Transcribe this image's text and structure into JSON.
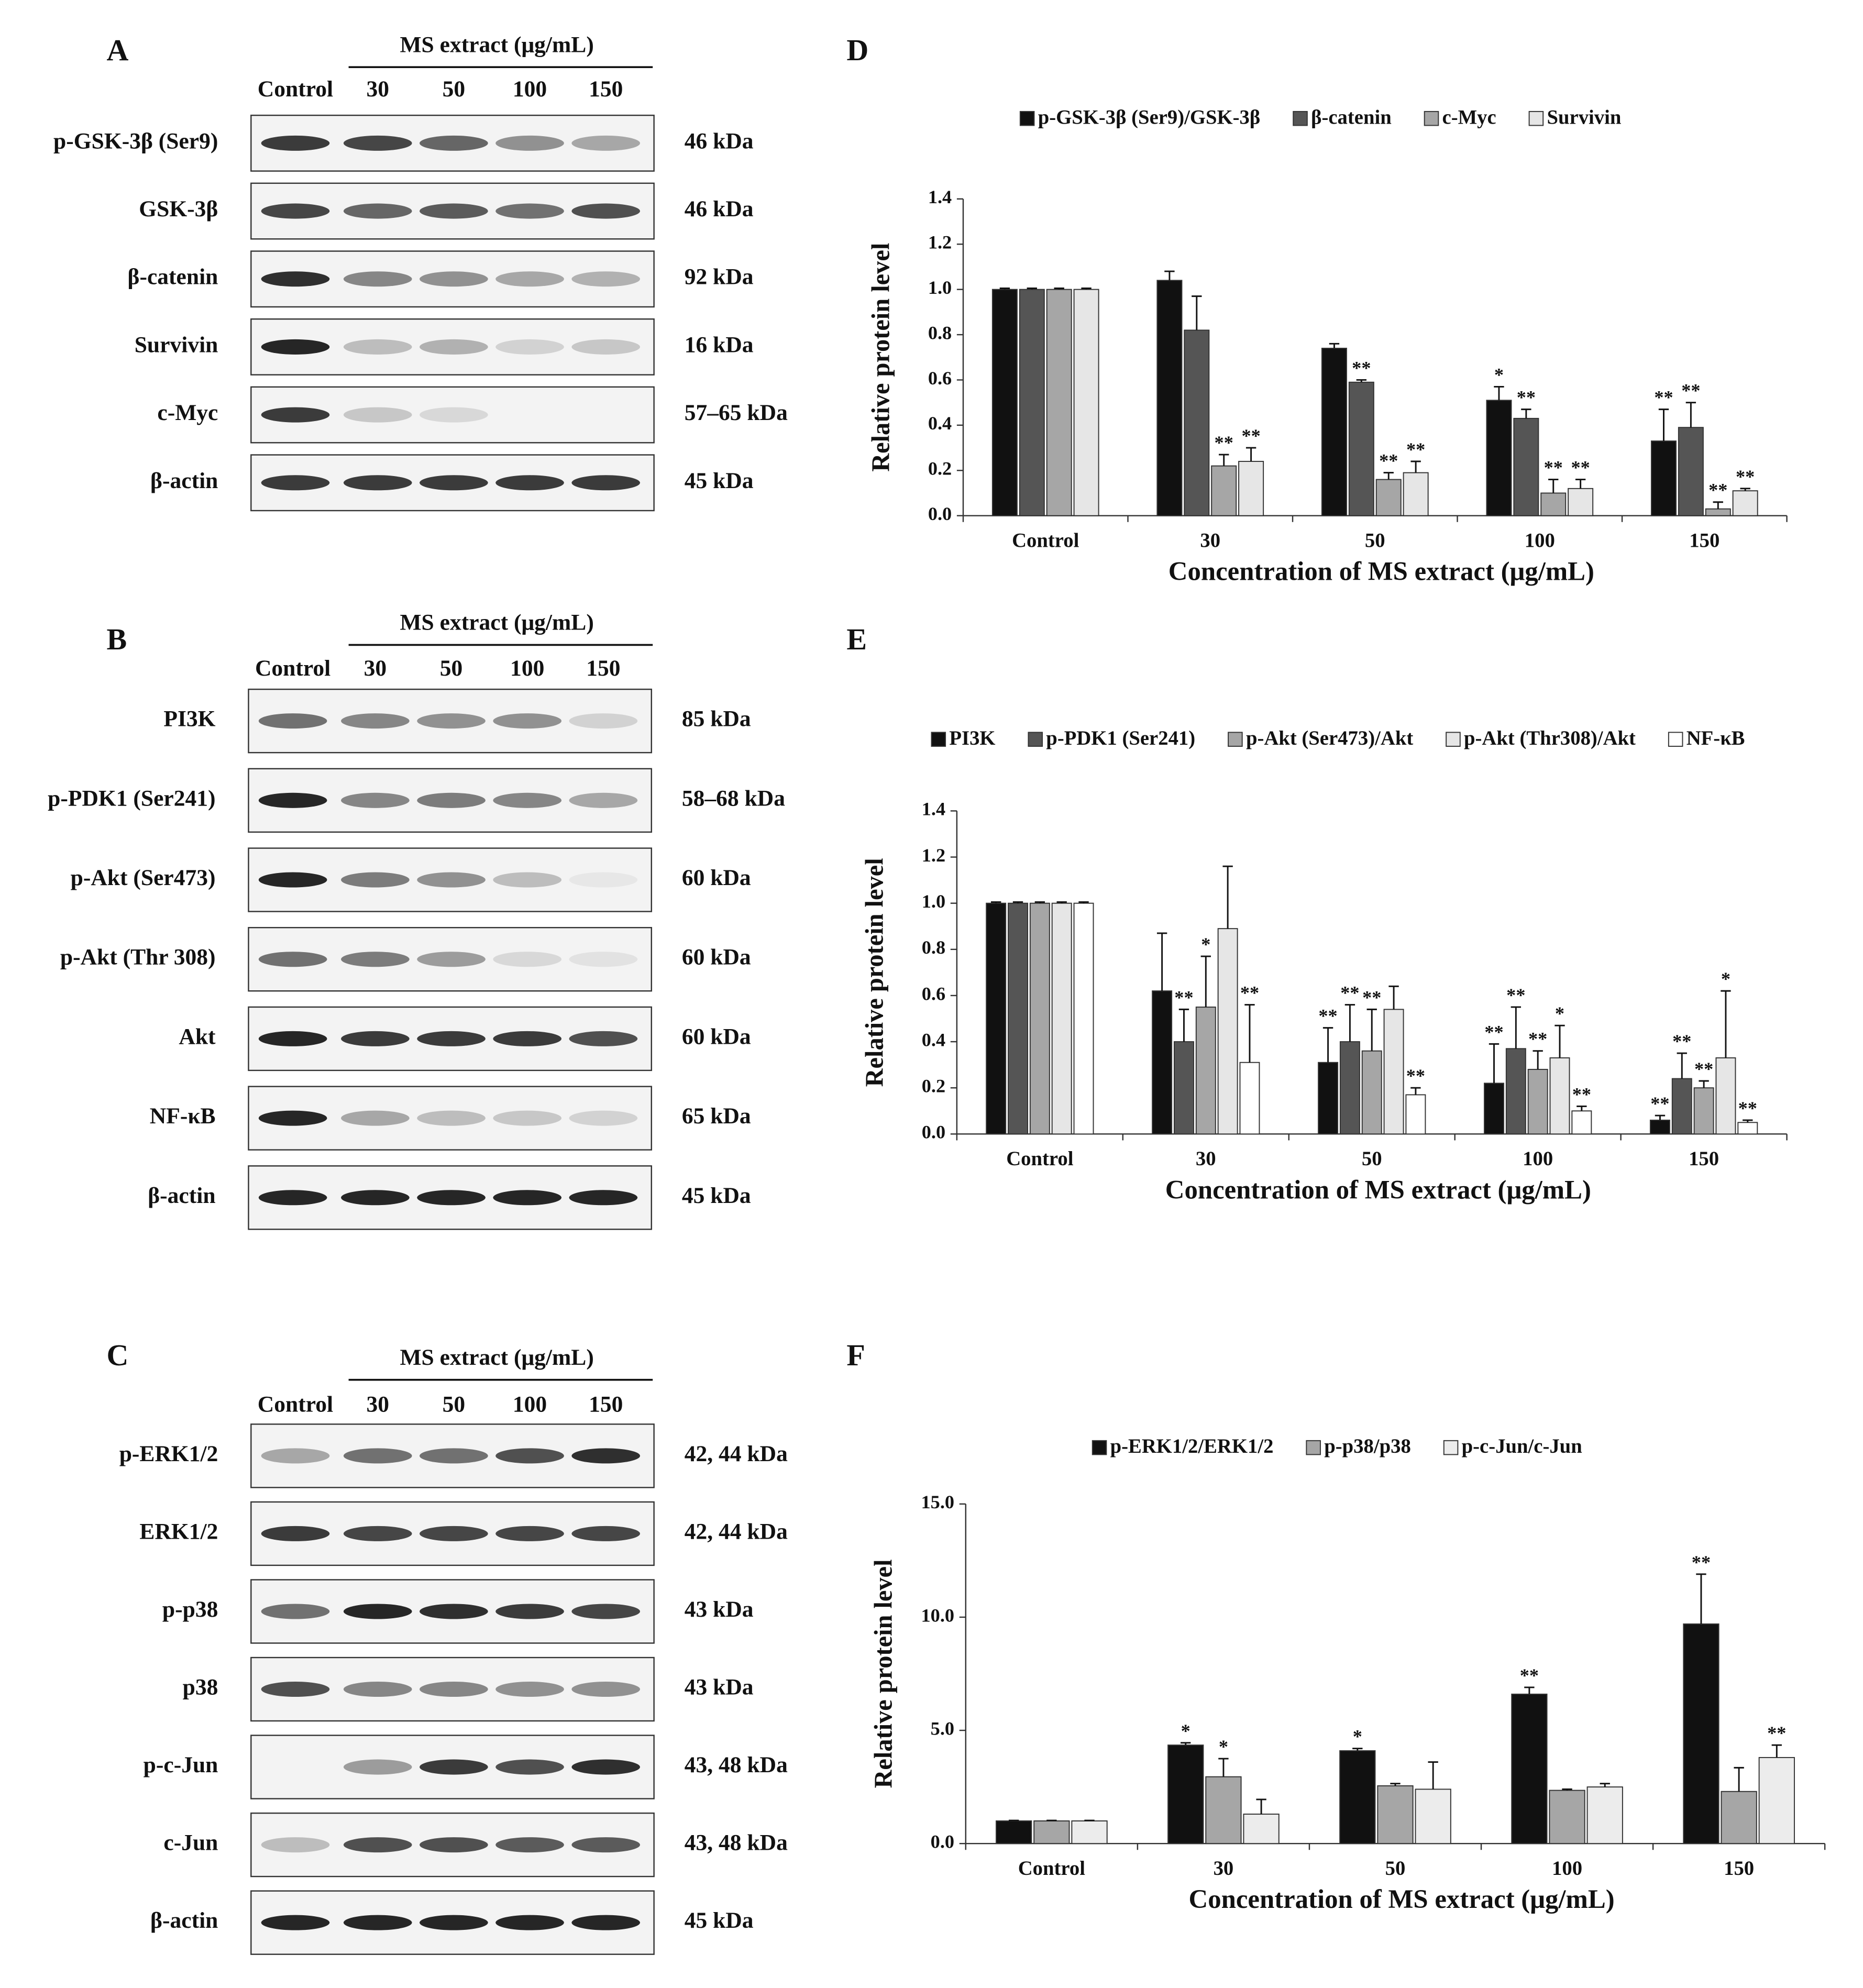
{
  "blots": [
    {
      "panel": "A",
      "header": "MS extract (μg/mL)",
      "lanes": [
        "Control",
        "30",
        "50",
        "100",
        "150"
      ],
      "rows": [
        {
          "label": "p-GSK-3β (Ser9)",
          "size": "46 kDa"
        },
        {
          "label": "GSK-3β",
          "size": "46 kDa"
        },
        {
          "label": "β-catenin",
          "size": "92 kDa"
        },
        {
          "label": "Survivin",
          "size": "16 kDa"
        },
        {
          "label": "c-Myc",
          "size": "57–65 kDa"
        },
        {
          "label": "β-actin",
          "size": "45 kDa"
        }
      ]
    },
    {
      "panel": "B",
      "header": "MS extract (μg/mL)",
      "lanes": [
        "Control",
        "30",
        "50",
        "100",
        "150"
      ],
      "rows": [
        {
          "label": "PI3K",
          "size": "85 kDa"
        },
        {
          "label": "p-PDK1 (Ser241)",
          "size": "58–68 kDa"
        },
        {
          "label": "p-Akt (Ser473)",
          "size": "60 kDa"
        },
        {
          "label": "p-Akt (Thr 308)",
          "size": "60 kDa"
        },
        {
          "label": "Akt",
          "size": "60 kDa"
        },
        {
          "label": "NF-κB",
          "size": "65 kDa"
        },
        {
          "label": "β-actin",
          "size": "45 kDa"
        }
      ]
    },
    {
      "panel": "C",
      "header": "MS extract (μg/mL)",
      "lanes": [
        "Control",
        "30",
        "50",
        "100",
        "150"
      ],
      "rows": [
        {
          "label": "p-ERK1/2",
          "size": "42, 44 kDa"
        },
        {
          "label": "ERK1/2",
          "size": "42, 44 kDa"
        },
        {
          "label": "p-p38",
          "size": "43 kDa"
        },
        {
          "label": "p38",
          "size": "43 kDa"
        },
        {
          "label": "p-c-Jun",
          "size": "43, 48 kDa"
        },
        {
          "label": "c-Jun",
          "size": "43, 48 kDa"
        },
        {
          "label": "β-actin",
          "size": "45 kDa"
        }
      ]
    }
  ],
  "chart_data": [
    {
      "panel": "D",
      "type": "bar",
      "ylabel": "Relative protein level",
      "xlabel": "Concentration of MS extract (μg/mL)",
      "categories": [
        "Control",
        "30",
        "50",
        "100",
        "150"
      ],
      "ylim": [
        0,
        1.4
      ],
      "yticks": [
        {
          "value": 0,
          "label": "0.0"
        },
        {
          "value": 0.2,
          "label": "0.2"
        },
        {
          "value": 0.4,
          "label": "0.4"
        },
        {
          "value": 0.6,
          "label": "0.6"
        },
        {
          "value": 0.8,
          "label": "0.8"
        },
        {
          "value": 1,
          "label": "1.0"
        },
        {
          "value": 1.2,
          "label": "1.2"
        },
        {
          "value": 1.4,
          "label": "1.4"
        }
      ],
      "series": [
        {
          "name": "p-GSK-3β (Ser9)/GSK-3β",
          "color": "#111111",
          "values": [
            1.0,
            1.04,
            0.74,
            0.51,
            0.33
          ],
          "errors": [
            0.005,
            0.04,
            0.02,
            0.06,
            0.14
          ],
          "significance": [
            null,
            null,
            null,
            "*",
            "**"
          ]
        },
        {
          "name": "β-catenin",
          "color": "#555555",
          "values": [
            1.0,
            0.82,
            0.59,
            0.43,
            0.39
          ],
          "errors": [
            0.005,
            0.15,
            0.01,
            0.04,
            0.11
          ],
          "significance": [
            null,
            null,
            "**",
            "**",
            "**"
          ]
        },
        {
          "name": "c-Myc",
          "color": "#a6a6a6",
          "values": [
            1.0,
            0.22,
            0.16,
            0.1,
            0.03
          ],
          "errors": [
            0.005,
            0.05,
            0.03,
            0.06,
            0.03
          ],
          "significance": [
            null,
            "**",
            "**",
            "**",
            "**"
          ]
        },
        {
          "name": "Survivin",
          "color": "#e6e6e6",
          "values": [
            1.0,
            0.24,
            0.19,
            0.12,
            0.11
          ],
          "errors": [
            0.005,
            0.06,
            0.05,
            0.04,
            0.01
          ],
          "significance": [
            null,
            "**",
            "**",
            "**",
            "**"
          ]
        }
      ]
    },
    {
      "panel": "E",
      "type": "bar",
      "ylabel": "Relative protein level",
      "xlabel": "Concentration of MS extract (μg/mL)",
      "categories": [
        "Control",
        "30",
        "50",
        "100",
        "150"
      ],
      "ylim": [
        0,
        1.4
      ],
      "yticks": [
        {
          "value": 0,
          "label": "0.0"
        },
        {
          "value": 0.2,
          "label": "0.2"
        },
        {
          "value": 0.4,
          "label": "0.4"
        },
        {
          "value": 0.6,
          "label": "0.6"
        },
        {
          "value": 0.8,
          "label": "0.8"
        },
        {
          "value": 1,
          "label": "1.0"
        },
        {
          "value": 1.2,
          "label": "1.2"
        },
        {
          "value": 1.4,
          "label": "1.4"
        }
      ],
      "series": [
        {
          "name": "PI3K",
          "color": "#111111",
          "values": [
            1.0,
            0.62,
            0.31,
            0.22,
            0.06
          ],
          "errors": [
            0.005,
            0.25,
            0.15,
            0.17,
            0.02
          ],
          "significance": [
            null,
            null,
            "**",
            "**",
            "**"
          ]
        },
        {
          "name": "p-PDK1 (Ser241)",
          "color": "#555555",
          "values": [
            1.0,
            0.4,
            0.4,
            0.37,
            0.24
          ],
          "errors": [
            0.005,
            0.14,
            0.16,
            0.18,
            0.11
          ],
          "significance": [
            null,
            "**",
            "**",
            "**",
            "**"
          ]
        },
        {
          "name": "p-Akt (Ser473)/Akt",
          "color": "#a6a6a6",
          "values": [
            1.0,
            0.55,
            0.36,
            0.28,
            0.2
          ],
          "errors": [
            0.005,
            0.22,
            0.18,
            0.08,
            0.03
          ],
          "significance": [
            null,
            "*",
            "**",
            "**",
            "**"
          ]
        },
        {
          "name": "p-Akt (Thr308)/Akt",
          "color": "#e6e6e6",
          "values": [
            1.0,
            0.89,
            0.54,
            0.33,
            0.33
          ],
          "errors": [
            0.005,
            0.27,
            0.1,
            0.14,
            0.29
          ],
          "significance": [
            null,
            null,
            null,
            "*",
            "*"
          ]
        },
        {
          "name": "NF-κB",
          "color": "#ffffff",
          "values": [
            1.0,
            0.31,
            0.17,
            0.1,
            0.05
          ],
          "errors": [
            0.005,
            0.25,
            0.03,
            0.02,
            0.01
          ],
          "significance": [
            null,
            "**",
            "**",
            "**",
            "**"
          ]
        }
      ]
    },
    {
      "panel": "F",
      "type": "bar",
      "ylabel": "Relative protein level",
      "xlabel": "Concentration of MS extract (μg/mL)",
      "categories": [
        "Control",
        "30",
        "50",
        "100",
        "150"
      ],
      "ylim": [
        0,
        15
      ],
      "yticks": [
        {
          "value": 0,
          "label": "0.0"
        },
        {
          "value": 5,
          "label": "5.0"
        },
        {
          "value": 10,
          "label": "10.0"
        },
        {
          "value": 15,
          "label": "15.0"
        }
      ],
      "series": [
        {
          "name": "p-ERK1/2/ERK1/2",
          "color": "#111111",
          "values": [
            1.0,
            4.35,
            4.1,
            6.6,
            9.7
          ],
          "errors": [
            0.02,
            0.1,
            0.1,
            0.3,
            2.2
          ],
          "significance": [
            null,
            "*",
            "*",
            "**",
            "**"
          ]
        },
        {
          "name": "p-p38/p38",
          "color": "#a6a6a6",
          "values": [
            1.0,
            2.95,
            2.55,
            2.35,
            2.3
          ],
          "errors": [
            0.02,
            0.8,
            0.1,
            0.05,
            1.05
          ],
          "significance": [
            null,
            "*",
            null,
            null,
            null
          ]
        },
        {
          "name": "p-c-Jun/c-Jun",
          "color": "#ececec",
          "values": [
            1.0,
            1.3,
            2.4,
            2.5,
            3.8
          ],
          "errors": [
            0.02,
            0.65,
            1.2,
            0.15,
            0.55
          ],
          "significance": [
            null,
            null,
            null,
            null,
            "**"
          ]
        }
      ]
    }
  ]
}
